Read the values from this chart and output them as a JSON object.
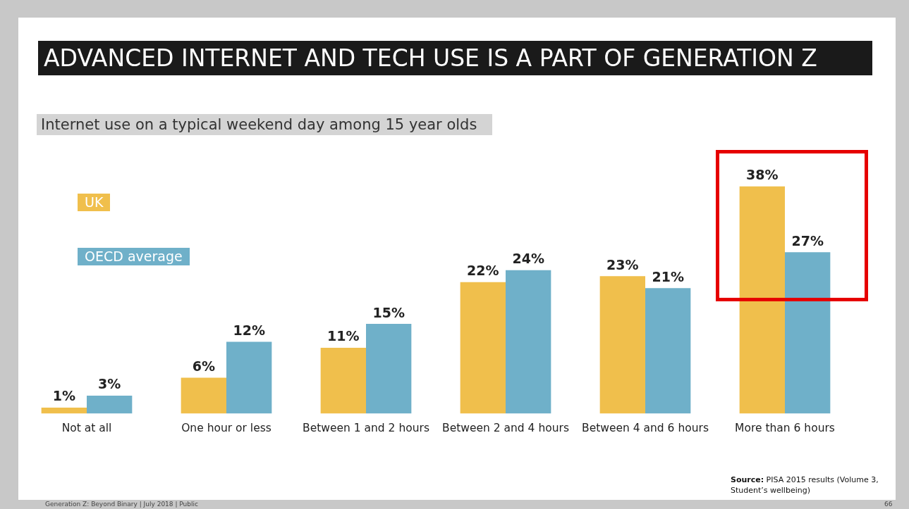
{
  "chart_data": {
    "type": "bar",
    "title": "ADVANCED INTERNET AND TECH USE IS A PART OF GENERATION Z",
    "subtitle": "Internet use on a typical weekend day among 15 year olds",
    "categories": [
      "Not at all",
      "One hour or less",
      "Between 1 and 2 hours",
      "Between 2 and 4 hours",
      "Between 4 and 6 hours",
      "More than 6 hours"
    ],
    "series": [
      {
        "name": "UK",
        "color": "#f0bf4c",
        "values": [
          1,
          6,
          11,
          22,
          23,
          38
        ],
        "value_labels": [
          "1%",
          "6%",
          "11%",
          "22%",
          "23%",
          "38%"
        ]
      },
      {
        "name": "OECD average",
        "color": "#6fb0c9",
        "values": [
          3,
          12,
          15,
          24,
          21,
          27
        ],
        "value_labels": [
          "3%",
          "12%",
          "15%",
          "24%",
          "21%",
          "27%"
        ]
      }
    ],
    "legend": "top left",
    "grid": false,
    "tick_labels": "x",
    "annotations": [
      "Source: PISA 2015 results (Volume 3, Student’s wellbeing)",
      "Generation Z: Beyond Binary | July 2018 | Public",
      "66"
    ]
  }
}
